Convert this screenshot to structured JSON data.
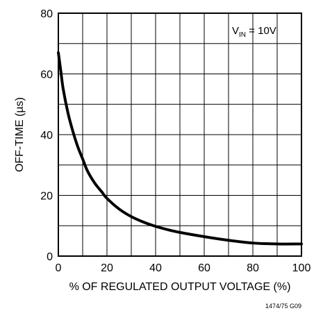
{
  "chart_data": {
    "type": "line",
    "title": "",
    "xlabel": "% OF REGULATED OUTPUT VOLTAGE (%)",
    "ylabel": "OFF-TIME (µs)",
    "xlim": [
      0,
      100
    ],
    "ylim": [
      0,
      80
    ],
    "x_ticks": [
      0,
      20,
      40,
      60,
      80,
      100
    ],
    "y_ticks": [
      0,
      20,
      40,
      60,
      80
    ],
    "grid": true,
    "legend": "none",
    "annotation": {
      "main": "V",
      "sub": "IN",
      "rest": " = 10V"
    },
    "figure_id": "1474/75 G09",
    "series": [
      {
        "x": [
          0,
          1,
          2,
          4,
          6,
          8,
          10,
          12,
          15,
          18,
          20,
          25,
          30,
          35,
          40,
          45,
          50,
          60,
          70,
          80,
          90,
          100
        ],
        "y": [
          67,
          61,
          55,
          47,
          41,
          36,
          32,
          28,
          24,
          21,
          19,
          15.5,
          13,
          11.2,
          9.8,
          8.7,
          7.8,
          6.4,
          5.2,
          4.3,
          4,
          4
        ],
        "color": "#000000"
      }
    ]
  }
}
